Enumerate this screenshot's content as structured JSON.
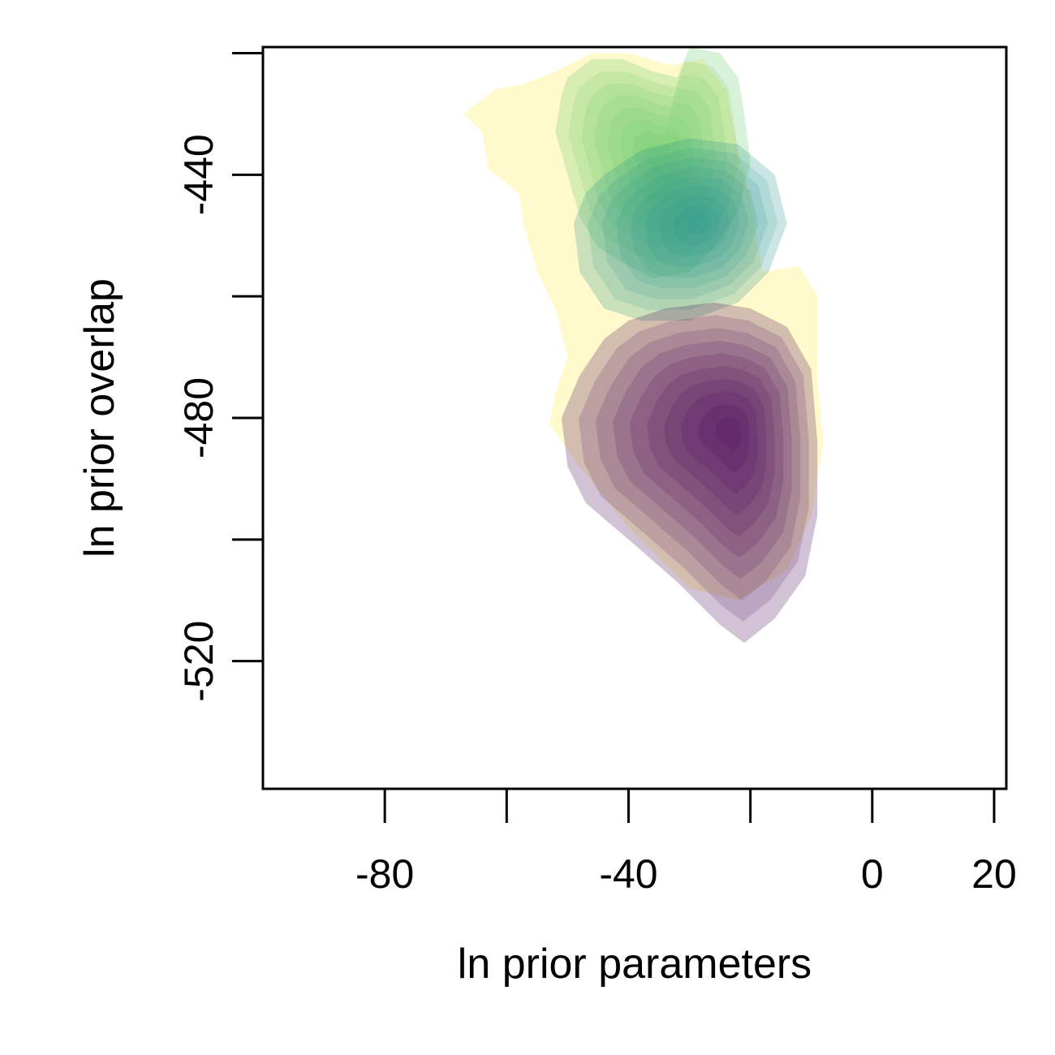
{
  "chart_data": {
    "type": "contour",
    "title": "",
    "xlabel": "ln prior parameters",
    "ylabel": "ln prior overlap",
    "xlim": [
      -100,
      22
    ],
    "ylim": [
      -541,
      -419
    ],
    "x_ticks": [
      -80,
      -60,
      -40,
      -20,
      0,
      20
    ],
    "x_tick_labels": [
      "-80",
      "",
      "-40",
      "",
      "0",
      "20"
    ],
    "y_ticks": [
      -520,
      -500,
      -480,
      -460,
      -440,
      -420
    ],
    "y_tick_labels": [
      "-520",
      "",
      "-480",
      "",
      "-440",
      ""
    ],
    "grid": false,
    "legend": "none",
    "series": [
      {
        "color": "#fde725",
        "levels": 1,
        "peak": [
          -28,
          -476
        ],
        "outline": [
          [
            -62,
            -426
          ],
          [
            -57,
            -425
          ],
          [
            -52,
            -423
          ],
          [
            -46,
            -420
          ],
          [
            -40,
            -420
          ],
          [
            -33,
            -422
          ],
          [
            -28,
            -421
          ],
          [
            -24,
            -426
          ],
          [
            -22,
            -436
          ],
          [
            -20,
            -444
          ],
          [
            -18,
            -456
          ],
          [
            -12,
            -455
          ],
          [
            -9,
            -460
          ],
          [
            -9,
            -474
          ],
          [
            -8,
            -484
          ],
          [
            -10,
            -496
          ],
          [
            -14,
            -505
          ],
          [
            -22,
            -510
          ],
          [
            -30,
            -508
          ],
          [
            -40,
            -498
          ],
          [
            -48,
            -488
          ],
          [
            -53,
            -481
          ],
          [
            -52,
            -476
          ],
          [
            -50,
            -470
          ],
          [
            -52,
            -462
          ],
          [
            -55,
            -456
          ],
          [
            -57,
            -449
          ],
          [
            -58,
            -443
          ],
          [
            -63,
            -439
          ],
          [
            -64,
            -433
          ],
          [
            -67,
            -430
          ]
        ]
      },
      {
        "color": "#5ec962",
        "levels": 8,
        "peak": [
          -35,
          -437
        ],
        "outline": [
          [
            -50,
            -424
          ],
          [
            -46,
            -421
          ],
          [
            -41,
            -421
          ],
          [
            -36,
            -423
          ],
          [
            -32,
            -424
          ],
          [
            -30,
            -419
          ],
          [
            -25,
            -420
          ],
          [
            -22,
            -424
          ],
          [
            -21,
            -430
          ],
          [
            -20,
            -438
          ],
          [
            -22,
            -446
          ],
          [
            -26,
            -452
          ],
          [
            -30,
            -456
          ],
          [
            -36,
            -457
          ],
          [
            -40,
            -455
          ],
          [
            -45,
            -452
          ],
          [
            -48,
            -447
          ],
          [
            -50,
            -440
          ],
          [
            -52,
            -433
          ],
          [
            -51,
            -427
          ]
        ]
      },
      {
        "color": "#21918c",
        "levels": 9,
        "peak": [
          -28,
          -448
        ],
        "outline": [
          [
            -44,
            -440
          ],
          [
            -38,
            -436
          ],
          [
            -30,
            -434
          ],
          [
            -22,
            -435
          ],
          [
            -16,
            -440
          ],
          [
            -14,
            -448
          ],
          [
            -17,
            -456
          ],
          [
            -22,
            -461
          ],
          [
            -30,
            -464
          ],
          [
            -38,
            -464
          ],
          [
            -44,
            -462
          ],
          [
            -48,
            -456
          ],
          [
            -49,
            -448
          ],
          [
            -47,
            -443
          ]
        ]
      },
      {
        "color": "#440154",
        "levels": 10,
        "peak": [
          -23,
          -482
        ],
        "outline": [
          [
            -40,
            -464
          ],
          [
            -34,
            -462
          ],
          [
            -26,
            -461
          ],
          [
            -20,
            -462
          ],
          [
            -14,
            -465
          ],
          [
            -10,
            -472
          ],
          [
            -9,
            -484
          ],
          [
            -9,
            -496
          ],
          [
            -11,
            -506
          ],
          [
            -16,
            -513
          ],
          [
            -21,
            -517
          ],
          [
            -25,
            -514
          ],
          [
            -32,
            -507
          ],
          [
            -40,
            -500
          ],
          [
            -47,
            -494
          ],
          [
            -50,
            -488
          ],
          [
            -51,
            -480
          ],
          [
            -48,
            -473
          ],
          [
            -44,
            -467
          ]
        ]
      }
    ]
  }
}
